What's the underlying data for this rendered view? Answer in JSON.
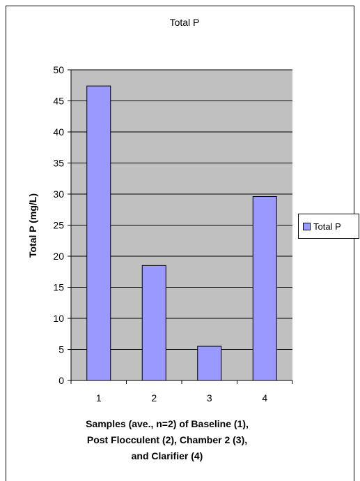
{
  "chart_data": {
    "type": "bar",
    "title": "Total P",
    "categories": [
      "1",
      "2",
      "3",
      "4"
    ],
    "series": [
      {
        "name": "Total P",
        "values": [
          47.4,
          18.5,
          5.5,
          29.6
        ]
      }
    ],
    "xlabel_lines": [
      "Samples (ave., n=2) of Baseline (1),",
      "Post Flocculent (2), Chamber 2 (3),",
      "and Clarifier (4)"
    ],
    "ylabel": "Total P (mg/L)",
    "ylim": [
      0,
      50
    ],
    "yticks": [
      0,
      5,
      10,
      15,
      20,
      25,
      30,
      35,
      40,
      45,
      50
    ],
    "grid": true,
    "legend": "right",
    "colors": {
      "bar_fill": "#9999ff",
      "plot_background": "#c0c0c0",
      "axis": "#000000"
    }
  }
}
